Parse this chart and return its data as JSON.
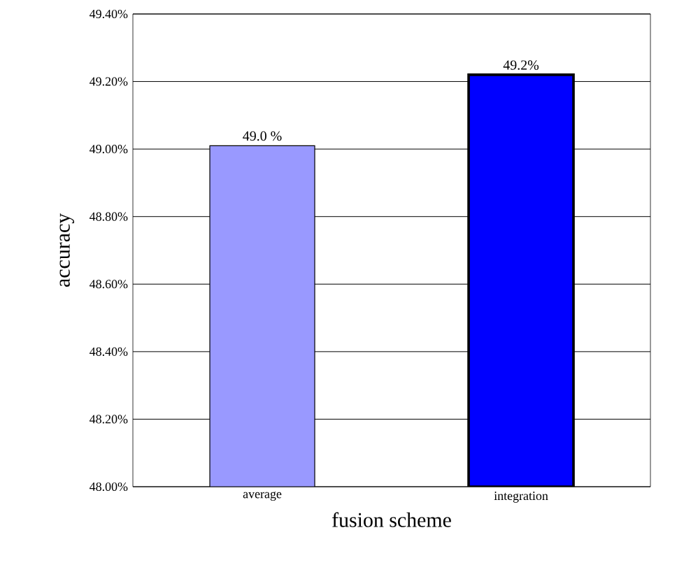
{
  "chart_data": {
    "type": "bar",
    "xlabel": "fusion scheme",
    "ylabel": "accuracy",
    "categories": [
      "average",
      "integration"
    ],
    "values": [
      49.01,
      49.22
    ],
    "colors": [
      "#9999ff",
      "#0000ff"
    ],
    "value_labels": [
      "49.0 %",
      "49.2%"
    ],
    "ylim": [
      48.0,
      49.4
    ],
    "yticks": [
      {
        "value": 48.0,
        "label": "48.00%"
      },
      {
        "value": 48.2,
        "label": "48.20%"
      },
      {
        "value": 48.4,
        "label": "48.40%"
      },
      {
        "value": 48.6,
        "label": "48.60%"
      },
      {
        "value": 48.8,
        "label": "48.80%"
      },
      {
        "value": 49.0,
        "label": "49.00%"
      },
      {
        "value": 49.2,
        "label": "49.20%"
      },
      {
        "value": 49.4,
        "label": "49.40%"
      }
    ],
    "grid": "y"
  }
}
